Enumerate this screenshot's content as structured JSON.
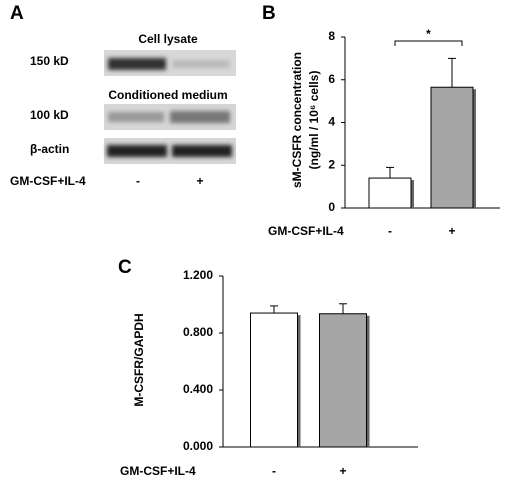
{
  "panel_a": {
    "label": "A",
    "sections": [
      "Cell lysate",
      "Conditioned medium"
    ],
    "rows": [
      "150 kD",
      "100 kD",
      "β-actin"
    ],
    "treatment_label": "GM-CSF+IL-4",
    "conditions": [
      "-",
      "+"
    ]
  },
  "chart_data": [
    {
      "type": "bar",
      "label": "B",
      "ylabel": [
        "sM-CSFR concentration",
        "(ng/ml / 10⁶ cells)"
      ],
      "xlabel": "GM-CSF+IL-4",
      "categories": [
        "-",
        "+"
      ],
      "values": [
        1.4,
        5.65
      ],
      "errors": [
        0.5,
        1.35
      ],
      "colors": [
        "#ffffff",
        "#a6a6a6"
      ],
      "ylim": [
        0,
        8
      ],
      "yticks": [
        0,
        2,
        4,
        6,
        8
      ],
      "annotation": "*"
    },
    {
      "type": "bar",
      "label": "C",
      "ylabel": [
        "M-CSFR/GAPDH"
      ],
      "xlabel": "GM-CSF+IL-4",
      "categories": [
        "-",
        "+"
      ],
      "values": [
        0.94,
        0.935
      ],
      "errors": [
        0.05,
        0.07
      ],
      "colors": [
        "#ffffff",
        "#a6a6a6"
      ],
      "ylim": [
        0,
        1.2
      ],
      "yticks": [
        {
          "value": 0,
          "label": "0.000"
        },
        {
          "value": 0.4,
          "label": "0.400"
        },
        {
          "value": 0.8,
          "label": "0.800"
        },
        {
          "value": 1.2,
          "label": "1.200"
        }
      ]
    }
  ]
}
